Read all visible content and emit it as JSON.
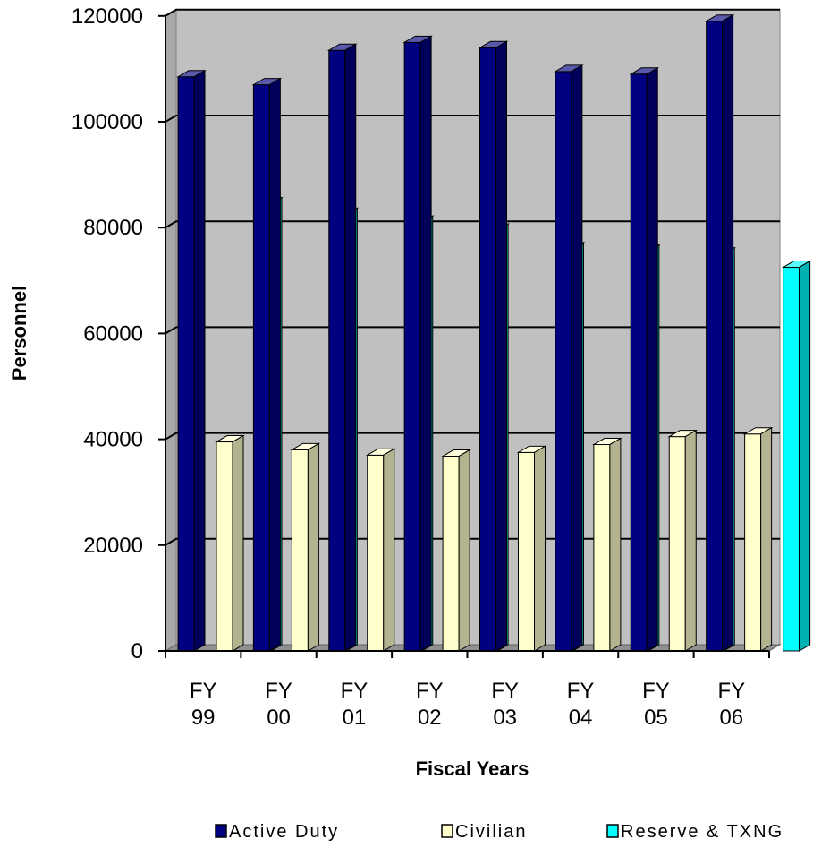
{
  "chart_data": {
    "type": "bar",
    "style": "3d-clustered-column",
    "title": "",
    "xlabel": "Fiscal Years",
    "ylabel": "Personnel",
    "ylim": [
      0,
      120000
    ],
    "yticks": [
      "0",
      "20000",
      "40000",
      "60000",
      "80000",
      "100000",
      "120000"
    ],
    "categories": [
      [
        "FY",
        "99"
      ],
      [
        "FY",
        "00"
      ],
      [
        "FY",
        "01"
      ],
      [
        "FY",
        "02"
      ],
      [
        "FY",
        "03"
      ],
      [
        "FY",
        "04"
      ],
      [
        "FY",
        "05"
      ],
      [
        "FY",
        "06"
      ]
    ],
    "series": [
      {
        "name": "Active Duty",
        "color": "#000080",
        "values": [
          108500,
          107000,
          113500,
          115000,
          114000,
          109500,
          109000,
          119000
        ]
      },
      {
        "name": "Civilian",
        "color": "#FFFFCC",
        "values": [
          39500,
          38000,
          37000,
          36800,
          37500,
          39000,
          40500,
          41000
        ]
      },
      {
        "name": "Reserve & TXNG",
        "color": "#00FFFF",
        "values": [
          84500,
          82500,
          81000,
          79500,
          76000,
          75500,
          75000,
          72500
        ]
      }
    ],
    "plot_background": "#C0C0C0",
    "grid": true,
    "legend_position": "bottom"
  }
}
